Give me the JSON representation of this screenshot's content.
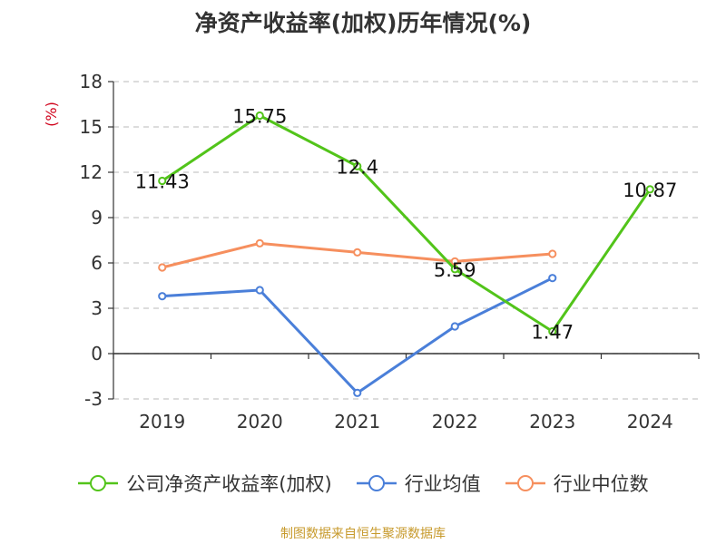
{
  "chart_data": {
    "type": "line",
    "title": "净资产收益率(加权)历年情况(%)",
    "ylabel": "(%)",
    "xlabel": "",
    "categories": [
      "2019",
      "2020",
      "2021",
      "2022",
      "2023",
      "2024"
    ],
    "ylim": [
      -3,
      18
    ],
    "yticks": [
      -3,
      0,
      3,
      6,
      9,
      12,
      15,
      18
    ],
    "grid": true,
    "legend_position": "bottom",
    "series": [
      {
        "name": "公司净资产收益率(加权)",
        "color": "#52c41a",
        "values": [
          11.43,
          15.75,
          12.4,
          5.59,
          1.47,
          10.87
        ],
        "labels": [
          "11.43",
          "15.75",
          "12.4",
          "5.59",
          "1.47",
          "10.87"
        ]
      },
      {
        "name": "行业均值",
        "color": "#4a7fd9",
        "values": [
          3.8,
          4.2,
          -2.6,
          1.8,
          5.0,
          null
        ]
      },
      {
        "name": "行业中位数",
        "color": "#f68f5e",
        "values": [
          5.7,
          7.3,
          6.7,
          6.1,
          6.6,
          null
        ]
      }
    ]
  },
  "source_text": "制图数据来自恒生聚源数据库"
}
